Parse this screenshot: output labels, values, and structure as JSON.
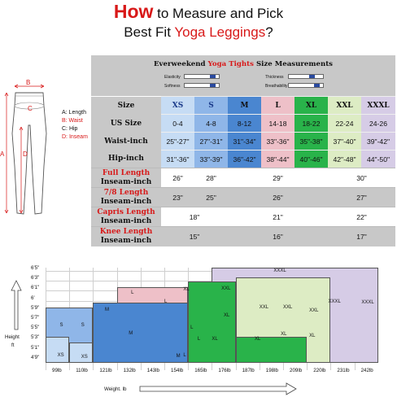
{
  "title": {
    "word_how": "How",
    "line1_rest": "to Measure and Pick",
    "line2_pre": "Best Fit",
    "line2_red": "Yoga Leggings",
    "line2_post": "?"
  },
  "figure": {
    "labels": {
      "A": "A",
      "B": "B",
      "C": "C",
      "D": "D"
    },
    "legend": [
      {
        "key": "A",
        "text": "A: Length",
        "color": "#111111"
      },
      {
        "key": "B",
        "text": "B: Waist",
        "color": "#d81919"
      },
      {
        "key": "C",
        "text": "C: Hip",
        "color": "#111111"
      },
      {
        "key": "D",
        "text": "D: Inseam",
        "color": "#d81919"
      }
    ]
  },
  "table": {
    "title_pre": "Everweekend",
    "title_red": "Yoga Tights",
    "title_post": "Size Measurements",
    "bars": [
      {
        "label": "Elasticity",
        "level": 0.85
      },
      {
        "label": "Thickness",
        "level": 0.7
      },
      {
        "label": "Softness",
        "level": 0.85
      },
      {
        "label": "Breathability",
        "level": 0.85
      }
    ],
    "row_labels": {
      "size": "Size",
      "us": "US Size",
      "waist": "Waist-inch",
      "hip": "Hip-inch"
    },
    "sizes": [
      {
        "size": "XS",
        "us": "0-4",
        "waist": "25\"-27\"",
        "hip": "31\"-36\"",
        "bg": "#c6dcf4",
        "color": "#1a3a8a"
      },
      {
        "size": "S",
        "us": "4-8",
        "waist": "27\"-31\"",
        "hip": "33\"-39\"",
        "bg": "#8fb6e8",
        "color": "#1a3a8a"
      },
      {
        "size": "M",
        "us": "8-12",
        "waist": "31\"-34\"",
        "hip": "36\"-42\"",
        "bg": "#4a86d0",
        "color": "#111111"
      },
      {
        "size": "L",
        "us": "14-18",
        "waist": "33\"-36\"",
        "hip": "38\"-44\"",
        "bg": "#eec0c8",
        "color": "#111111"
      },
      {
        "size": "XL",
        "us": "18-22",
        "waist": "35\"-38\"",
        "hip": "40\"-46\"",
        "bg": "#29b34a",
        "color": "#111111"
      },
      {
        "size": "XXL",
        "us": "22-24",
        "waist": "37\"-40\"",
        "hip": "42\"-48\"",
        "bg": "#ddecc4",
        "color": "#111111"
      },
      {
        "size": "XXXL",
        "us": "24-26",
        "waist": "39\"-42\"",
        "hip": "44\"-50\"",
        "bg": "#d6cce6",
        "color": "#111111"
      }
    ],
    "fits": [
      {
        "line1": "Full Length",
        "line2": "Inseam-inch",
        "vals": [
          "26\"",
          "28\"",
          "29\"",
          "30\""
        ]
      },
      {
        "line1": "7/8 Length",
        "line2": "Inseam-inch",
        "vals": [
          "23\"",
          "25\"",
          "26\"",
          "27\""
        ]
      },
      {
        "line1": "Capris Length",
        "line2": "Inseam-inch",
        "vals": [
          "18\"",
          "21\"",
          "22\""
        ]
      },
      {
        "line1": "Knee Length",
        "line2": "Inseam-inch",
        "vals": [
          "15\"",
          "16\"",
          "17\""
        ]
      }
    ]
  },
  "chart": {
    "y_title_1": "Height",
    "y_title_2": "ft",
    "x_title": "Weight. lb",
    "heights": [
      "6'5\"",
      "6'3\"",
      "6'1\"",
      "6'",
      "5'9\"",
      "5'7\"",
      "5'5\"",
      "5'3\"",
      "5'1\"",
      "4'9\""
    ],
    "weights": [
      "99lb",
      "110lb",
      "121lb",
      "132lb",
      "143lb",
      "154lb",
      "165lb",
      "176lb",
      "187lb",
      "198lb",
      "209lb",
      "220lb",
      "231lb",
      "242lb"
    ],
    "zones": [
      {
        "size": "XS",
        "color": "#c6dcf4",
        "labels": [
          "XS",
          "XS"
        ]
      },
      {
        "size": "S",
        "color": "#8fb6e8",
        "labels": [
          "S",
          "S"
        ]
      },
      {
        "size": "M",
        "color": "#4a86d0",
        "labels": [
          "M",
          "M",
          "M"
        ]
      },
      {
        "size": "L",
        "color": "#eec0c8",
        "labels": [
          "L",
          "L",
          "L",
          "L",
          "L"
        ]
      },
      {
        "size": "XL",
        "color": "#29b34a",
        "labels": [
          "XL",
          "XL",
          "XL",
          "XL",
          "XL",
          "XL"
        ]
      },
      {
        "size": "XXL",
        "color": "#ddecc4",
        "labels": [
          "XXL",
          "XXL",
          "XXL",
          "XXL"
        ]
      },
      {
        "size": "XXXL",
        "color": "#d6cce6",
        "labels": [
          "XXXL",
          "XXXL",
          "XXXL"
        ]
      }
    ]
  }
}
